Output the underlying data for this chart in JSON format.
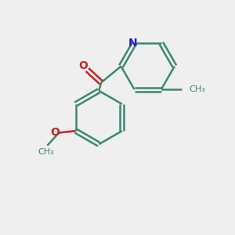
{
  "bg_color": "#efefef",
  "bond_color": "#3a8a6e",
  "n_color": "#2020cc",
  "o_color": "#cc2020",
  "line_width": 1.8,
  "fig_size": [
    3.0,
    3.0
  ],
  "dpi": 100,
  "xlim": [
    0,
    10
  ],
  "ylim": [
    0,
    10
  ]
}
